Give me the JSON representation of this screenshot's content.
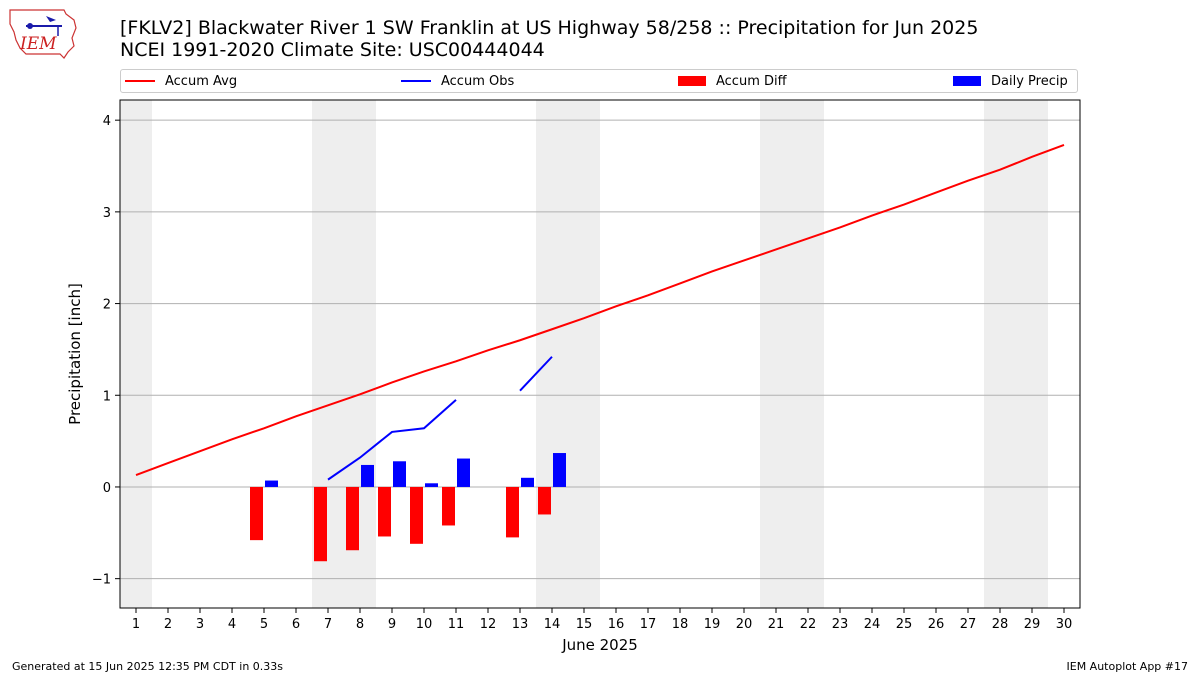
{
  "logo": {
    "text": "IEM"
  },
  "header": {
    "title_line1": "[FKLV2] Blackwater River 1 SW Franklin at US Highway 58/258 :: Precipitation for Jun 2025",
    "title_line2": "NCEI 1991-2020 Climate Site: USC00444044"
  },
  "legend": {
    "accum_avg": "Accum Avg",
    "accum_obs": "Accum Obs",
    "accum_diff": "Accum Diff",
    "daily_precip": "Daily Precip"
  },
  "colors": {
    "accum_avg": "#ff0000",
    "accum_obs": "#0000ff",
    "accum_diff": "#ff0000",
    "daily_precip": "#0000ff",
    "weekend_band": "#eeeeee",
    "grid": "#b0b0b0"
  },
  "chart_data": {
    "type": "bar",
    "xlabel": "June 2025",
    "ylabel": "Precipitation [inch]",
    "xlim": [
      0.5,
      30.5
    ],
    "ylim": [
      -1.32,
      4.22
    ],
    "x_ticks": [
      1,
      2,
      3,
      4,
      5,
      6,
      7,
      8,
      9,
      10,
      11,
      12,
      13,
      14,
      15,
      16,
      17,
      18,
      19,
      20,
      21,
      22,
      23,
      24,
      25,
      26,
      27,
      28,
      29,
      30
    ],
    "y_ticks": [
      -1,
      0,
      1,
      2,
      3,
      4
    ],
    "y_tick_labels": [
      "−1",
      "0",
      "1",
      "2",
      "3",
      "4"
    ],
    "grid": "horizontal",
    "legend_position": "top",
    "weekend_bands": [
      [
        0.5,
        1.5
      ],
      [
        6.5,
        8.5
      ],
      [
        13.5,
        15.5
      ],
      [
        20.5,
        22.5
      ],
      [
        27.5,
        29.5
      ]
    ],
    "series": [
      {
        "name": "Accum Avg",
        "kind": "line",
        "x": [
          1,
          2,
          3,
          4,
          5,
          6,
          7,
          8,
          9,
          10,
          11,
          12,
          13,
          14,
          15,
          16,
          17,
          18,
          19,
          20,
          21,
          22,
          23,
          24,
          25,
          26,
          27,
          28,
          29,
          30
        ],
        "y": [
          0.13,
          0.26,
          0.39,
          0.52,
          0.64,
          0.77,
          0.89,
          1.01,
          1.14,
          1.26,
          1.37,
          1.49,
          1.6,
          1.72,
          1.84,
          1.97,
          2.09,
          2.22,
          2.35,
          2.47,
          2.59,
          2.71,
          2.83,
          2.96,
          3.08,
          3.21,
          3.34,
          3.46,
          3.6,
          3.73
        ]
      },
      {
        "name": "Accum Obs",
        "kind": "line",
        "segments": [
          {
            "x": [
              7,
              8,
              9,
              10,
              11
            ],
            "y": [
              0.08,
              0.32,
              0.6,
              0.64,
              0.95
            ]
          },
          {
            "x": [
              13,
              14
            ],
            "y": [
              1.05,
              1.42
            ]
          }
        ]
      },
      {
        "name": "Accum Diff",
        "kind": "bar",
        "x": [
          5,
          7,
          8,
          9,
          10,
          11,
          13,
          14
        ],
        "y": [
          -0.58,
          -0.81,
          -0.69,
          -0.54,
          -0.62,
          -0.42,
          -0.55,
          -0.3
        ]
      },
      {
        "name": "Daily Precip",
        "kind": "bar",
        "x": [
          5,
          8,
          9,
          10,
          11,
          13,
          14
        ],
        "y": [
          0.07,
          0.24,
          0.28,
          0.04,
          0.31,
          0.1,
          0.37
        ]
      }
    ]
  },
  "footer": {
    "generated": "Generated at 15 Jun 2025 12:35 PM CDT in 0.33s",
    "app": "IEM Autoplot App #17"
  }
}
